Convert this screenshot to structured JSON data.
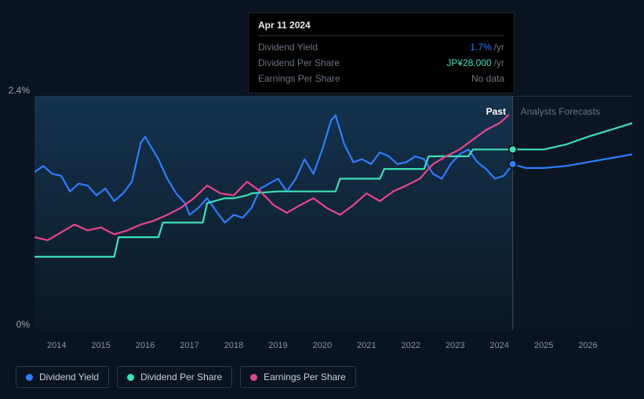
{
  "tooltip": {
    "date": "Apr 11 2024",
    "rows": [
      {
        "label": "Dividend Yield",
        "value": "1.7%",
        "unit": "/yr",
        "color": "#2e7dff"
      },
      {
        "label": "Dividend Per Share",
        "value": "JP¥28.000",
        "unit": "/yr",
        "color": "#3ee0b8"
      },
      {
        "label": "Earnings Per Share",
        "value": "No data",
        "unit": "",
        "color": "#6a7580"
      }
    ]
  },
  "chart": {
    "type": "line",
    "background_color": "#0a1420",
    "past_gradient_top": "#15334f",
    "past_gradient_bottom": "#0b1824",
    "forecast_bg": "#0d1826",
    "grid_color": "#2a3540",
    "yaxis": {
      "min_label": "0%",
      "max_label": "2.4%",
      "min": 0,
      "max": 2.4
    },
    "xaxis": {
      "min": 2013.5,
      "max": 2027,
      "ticks": [
        2014,
        2015,
        2016,
        2017,
        2018,
        2019,
        2020,
        2021,
        2022,
        2023,
        2024,
        2025,
        2026
      ],
      "tick_labels": [
        "2014",
        "2015",
        "2016",
        "2017",
        "2018",
        "2019",
        "2020",
        "2021",
        "2022",
        "2023",
        "2024",
        "2025",
        "2026"
      ]
    },
    "divider_x": 2024.3,
    "section_past_label": "Past",
    "section_forecast_label": "Analysts Forecasts",
    "series": [
      {
        "id": "dividend-yield",
        "name": "Dividend Yield",
        "color": "#2e7dff",
        "marker": {
          "x": 2024.3,
          "y": 1.7
        },
        "points": [
          [
            2013.5,
            1.62
          ],
          [
            2013.7,
            1.68
          ],
          [
            2013.9,
            1.6
          ],
          [
            2014.1,
            1.58
          ],
          [
            2014.3,
            1.42
          ],
          [
            2014.5,
            1.5
          ],
          [
            2014.7,
            1.48
          ],
          [
            2014.9,
            1.38
          ],
          [
            2015.1,
            1.45
          ],
          [
            2015.3,
            1.32
          ],
          [
            2015.5,
            1.4
          ],
          [
            2015.7,
            1.52
          ],
          [
            2015.9,
            1.92
          ],
          [
            2016.0,
            1.98
          ],
          [
            2016.1,
            1.9
          ],
          [
            2016.3,
            1.75
          ],
          [
            2016.5,
            1.55
          ],
          [
            2016.7,
            1.4
          ],
          [
            2016.9,
            1.3
          ],
          [
            2017.0,
            1.18
          ],
          [
            2017.2,
            1.25
          ],
          [
            2017.4,
            1.35
          ],
          [
            2017.6,
            1.22
          ],
          [
            2017.8,
            1.1
          ],
          [
            2018.0,
            1.18
          ],
          [
            2018.2,
            1.15
          ],
          [
            2018.4,
            1.25
          ],
          [
            2018.6,
            1.45
          ],
          [
            2018.8,
            1.5
          ],
          [
            2019.0,
            1.55
          ],
          [
            2019.2,
            1.42
          ],
          [
            2019.4,
            1.55
          ],
          [
            2019.6,
            1.75
          ],
          [
            2019.8,
            1.6
          ],
          [
            2020.0,
            1.85
          ],
          [
            2020.2,
            2.15
          ],
          [
            2020.3,
            2.2
          ],
          [
            2020.5,
            1.9
          ],
          [
            2020.7,
            1.72
          ],
          [
            2020.9,
            1.75
          ],
          [
            2021.1,
            1.7
          ],
          [
            2021.3,
            1.82
          ],
          [
            2021.5,
            1.78
          ],
          [
            2021.7,
            1.7
          ],
          [
            2021.9,
            1.72
          ],
          [
            2022.1,
            1.78
          ],
          [
            2022.3,
            1.75
          ],
          [
            2022.5,
            1.6
          ],
          [
            2022.7,
            1.55
          ],
          [
            2022.9,
            1.7
          ],
          [
            2023.1,
            1.8
          ],
          [
            2023.3,
            1.85
          ],
          [
            2023.5,
            1.72
          ],
          [
            2023.7,
            1.65
          ],
          [
            2023.9,
            1.55
          ],
          [
            2024.1,
            1.58
          ],
          [
            2024.3,
            1.7
          ],
          [
            2024.6,
            1.66
          ],
          [
            2025.0,
            1.66
          ],
          [
            2025.5,
            1.68
          ],
          [
            2026.0,
            1.72
          ],
          [
            2026.5,
            1.76
          ],
          [
            2027.0,
            1.8
          ]
        ]
      },
      {
        "id": "dividend-per-share",
        "name": "Dividend Per Share",
        "color": "#3ee0b8",
        "marker": {
          "x": 2024.3,
          "y": 1.85
        },
        "points": [
          [
            2013.5,
            0.75
          ],
          [
            2014.0,
            0.75
          ],
          [
            2014.5,
            0.75
          ],
          [
            2015.0,
            0.75
          ],
          [
            2015.3,
            0.75
          ],
          [
            2015.4,
            0.95
          ],
          [
            2016.0,
            0.95
          ],
          [
            2016.3,
            0.95
          ],
          [
            2016.4,
            1.1
          ],
          [
            2017.0,
            1.1
          ],
          [
            2017.3,
            1.1
          ],
          [
            2017.4,
            1.3
          ],
          [
            2017.8,
            1.35
          ],
          [
            2018.0,
            1.35
          ],
          [
            2018.3,
            1.38
          ],
          [
            2018.4,
            1.4
          ],
          [
            2019.0,
            1.42
          ],
          [
            2019.5,
            1.42
          ],
          [
            2020.0,
            1.42
          ],
          [
            2020.3,
            1.42
          ],
          [
            2020.4,
            1.55
          ],
          [
            2021.0,
            1.55
          ],
          [
            2021.3,
            1.55
          ],
          [
            2021.4,
            1.65
          ],
          [
            2022.0,
            1.65
          ],
          [
            2022.3,
            1.65
          ],
          [
            2022.4,
            1.78
          ],
          [
            2023.0,
            1.78
          ],
          [
            2023.3,
            1.78
          ],
          [
            2023.4,
            1.85
          ],
          [
            2024.0,
            1.85
          ],
          [
            2024.3,
            1.85
          ],
          [
            2025.0,
            1.85
          ],
          [
            2025.5,
            1.9
          ],
          [
            2026.0,
            1.98
          ],
          [
            2026.5,
            2.05
          ],
          [
            2027.0,
            2.12
          ]
        ]
      },
      {
        "id": "earnings-per-share",
        "name": "Earnings Per Share",
        "color": "#e8468c",
        "points": [
          [
            2013.5,
            0.95
          ],
          [
            2013.8,
            0.92
          ],
          [
            2014.1,
            1.0
          ],
          [
            2014.4,
            1.08
          ],
          [
            2014.7,
            1.02
          ],
          [
            2015.0,
            1.05
          ],
          [
            2015.3,
            0.98
          ],
          [
            2015.6,
            1.02
          ],
          [
            2015.9,
            1.08
          ],
          [
            2016.2,
            1.12
          ],
          [
            2016.5,
            1.18
          ],
          [
            2016.8,
            1.25
          ],
          [
            2017.1,
            1.35
          ],
          [
            2017.4,
            1.48
          ],
          [
            2017.7,
            1.4
          ],
          [
            2018.0,
            1.38
          ],
          [
            2018.3,
            1.52
          ],
          [
            2018.6,
            1.42
          ],
          [
            2018.9,
            1.28
          ],
          [
            2019.2,
            1.2
          ],
          [
            2019.5,
            1.28
          ],
          [
            2019.8,
            1.35
          ],
          [
            2020.1,
            1.25
          ],
          [
            2020.4,
            1.18
          ],
          [
            2020.7,
            1.28
          ],
          [
            2021.0,
            1.4
          ],
          [
            2021.3,
            1.32
          ],
          [
            2021.6,
            1.42
          ],
          [
            2021.9,
            1.48
          ],
          [
            2022.2,
            1.55
          ],
          [
            2022.5,
            1.7
          ],
          [
            2022.8,
            1.78
          ],
          [
            2023.1,
            1.85
          ],
          [
            2023.4,
            1.95
          ],
          [
            2023.7,
            2.05
          ],
          [
            2024.0,
            2.12
          ],
          [
            2024.2,
            2.2
          ]
        ]
      }
    ],
    "legend": [
      {
        "id": "dividend-yield",
        "label": "Dividend Yield",
        "color": "#2e7dff"
      },
      {
        "id": "dividend-per-share",
        "label": "Dividend Per Share",
        "color": "#3ee0b8"
      },
      {
        "id": "earnings-per-share",
        "label": "Earnings Per Share",
        "color": "#e8468c"
      }
    ]
  }
}
